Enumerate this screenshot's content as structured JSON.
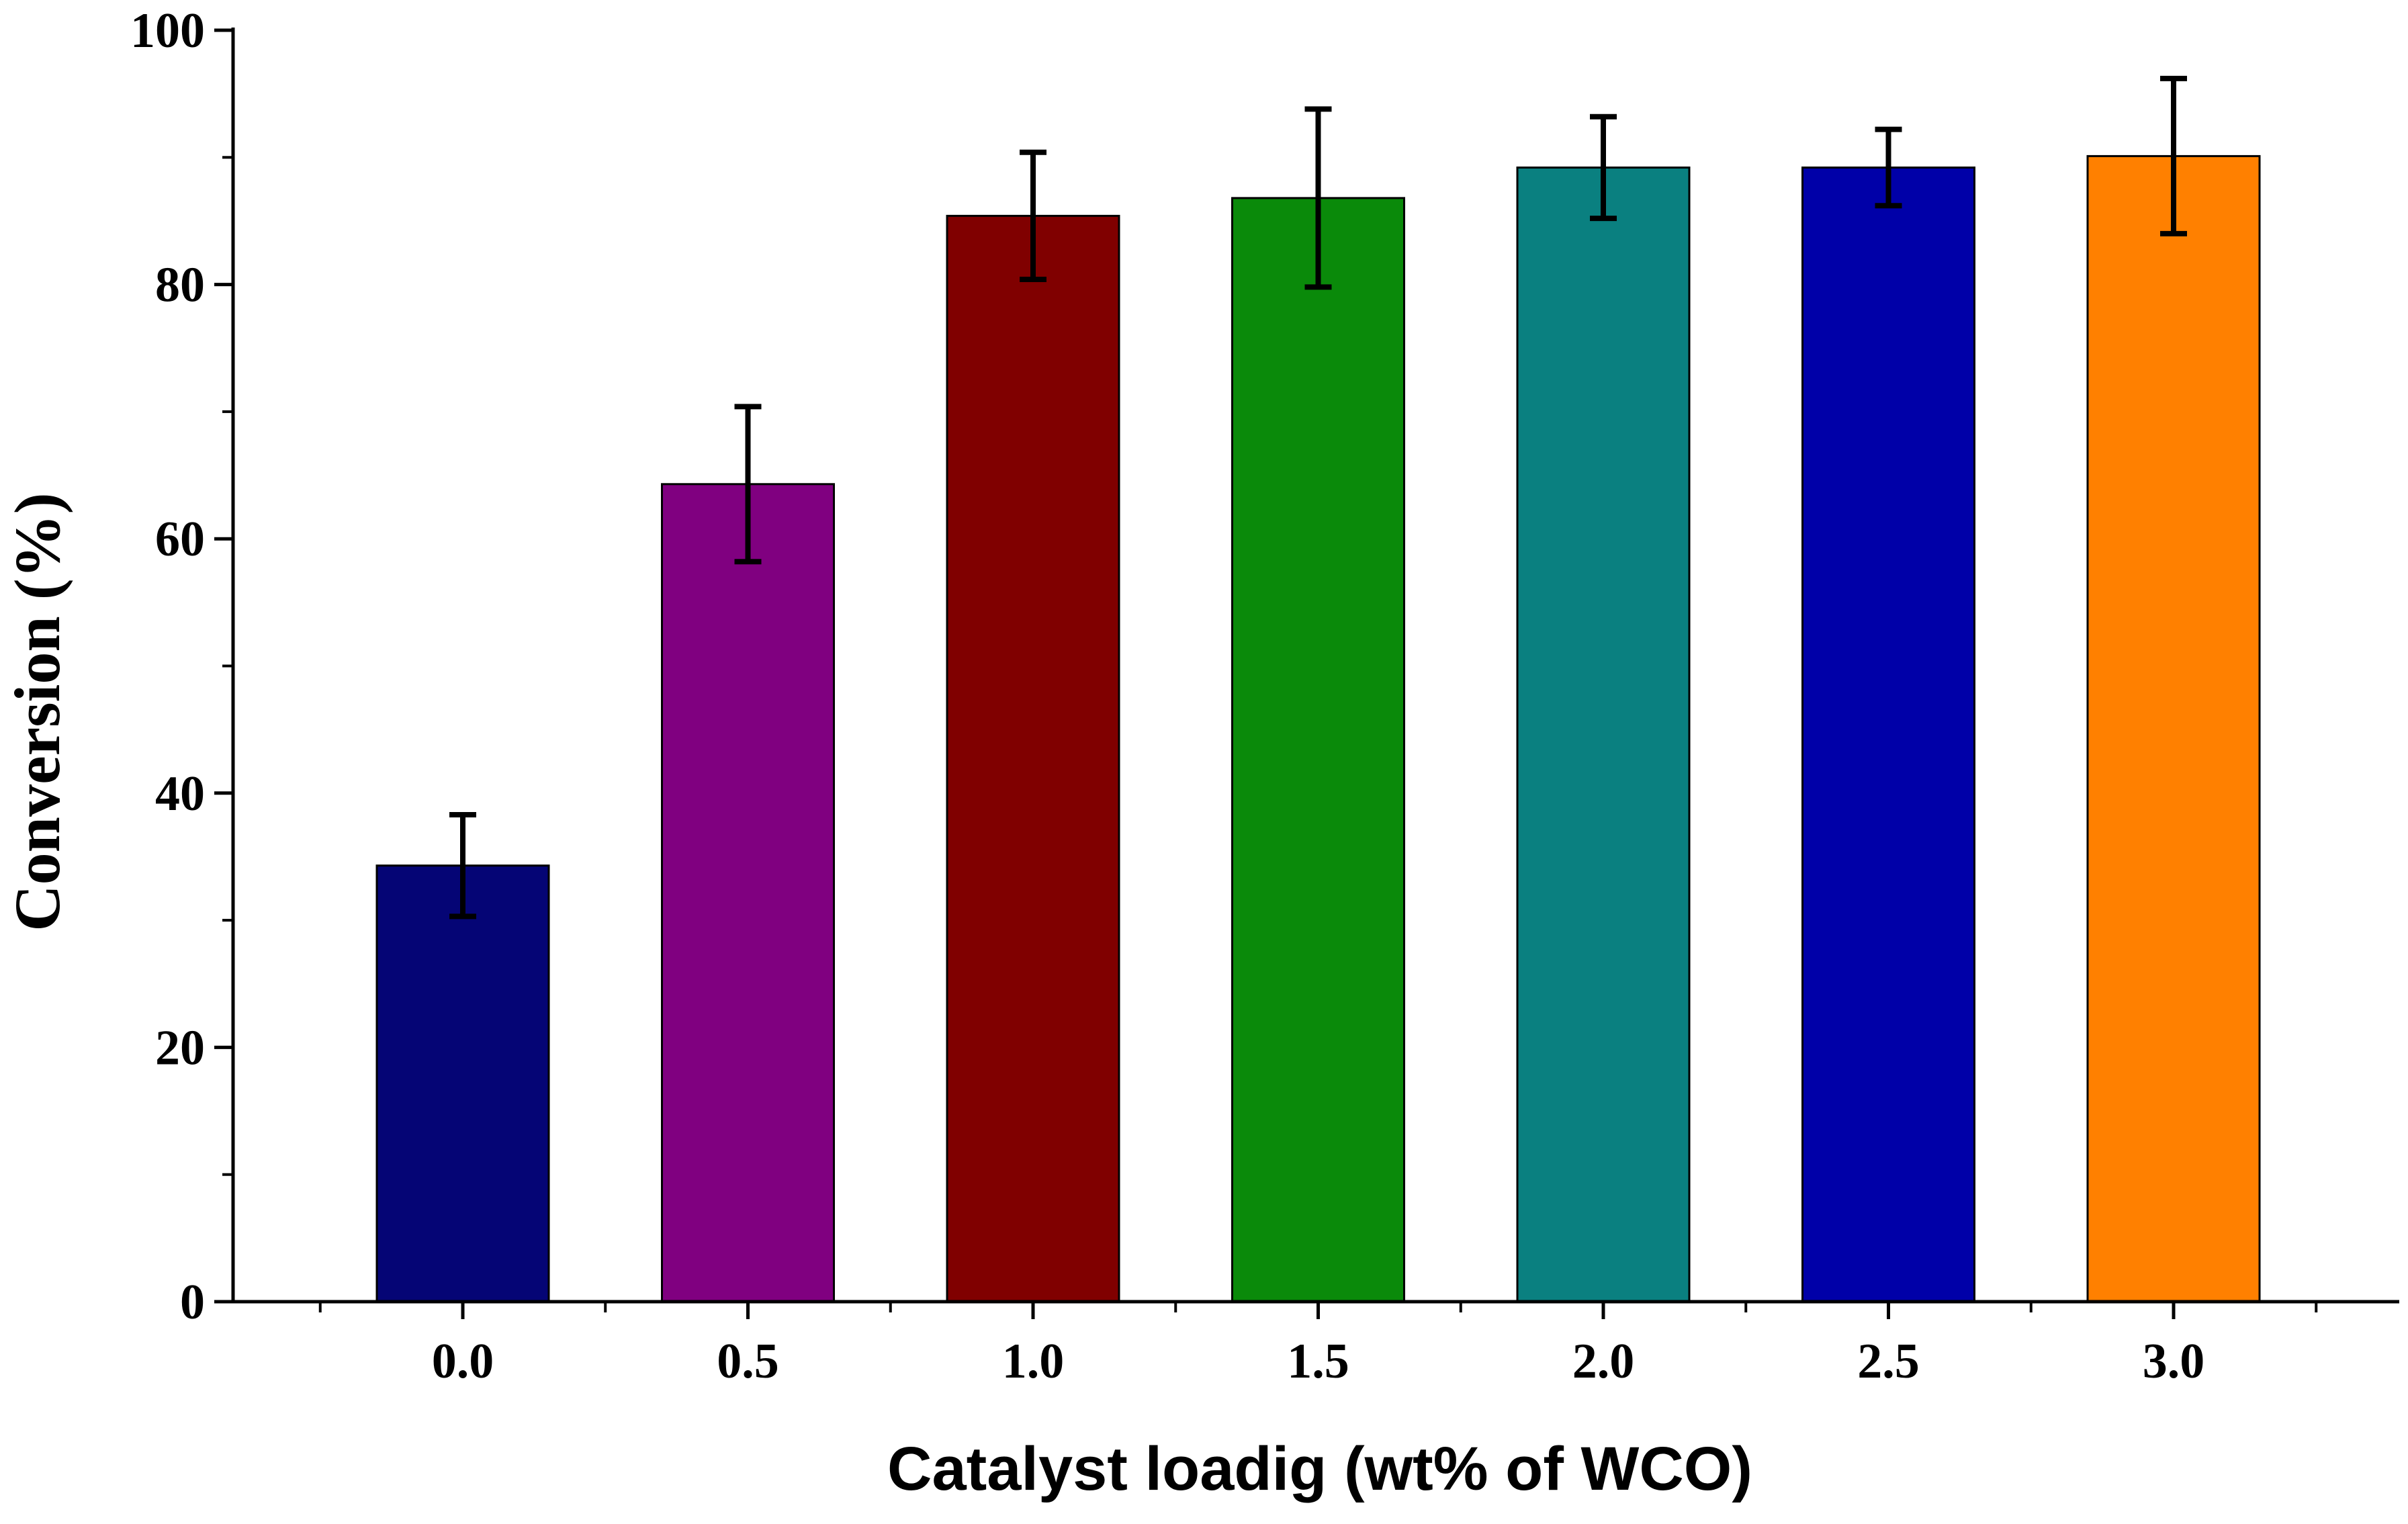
{
  "chart_data": {
    "type": "bar",
    "title": "",
    "xlabel": "Catalyst loadig (wt% of WCO)",
    "ylabel": "Conversion (%)",
    "ylim": [
      0,
      100
    ],
    "yticks": [
      "0",
      "20",
      "40",
      "60",
      "80",
      "100"
    ],
    "categories": [
      "0.0",
      "0.5",
      "1.0",
      "1.5",
      "2.0",
      "2.5",
      "3.0"
    ],
    "values": [
      34.3,
      64.3,
      85.4,
      86.8,
      89.2,
      89.2,
      90.1
    ],
    "errors": [
      4.0,
      6.1,
      5.0,
      7.0,
      4.0,
      3.0,
      6.1
    ],
    "colors": [
      "#050575",
      "#800080",
      "#800000",
      "#0a8a0a",
      "#0a8080",
      "#0000a8",
      "#ff8000"
    ],
    "grid": false,
    "legend": "none"
  }
}
